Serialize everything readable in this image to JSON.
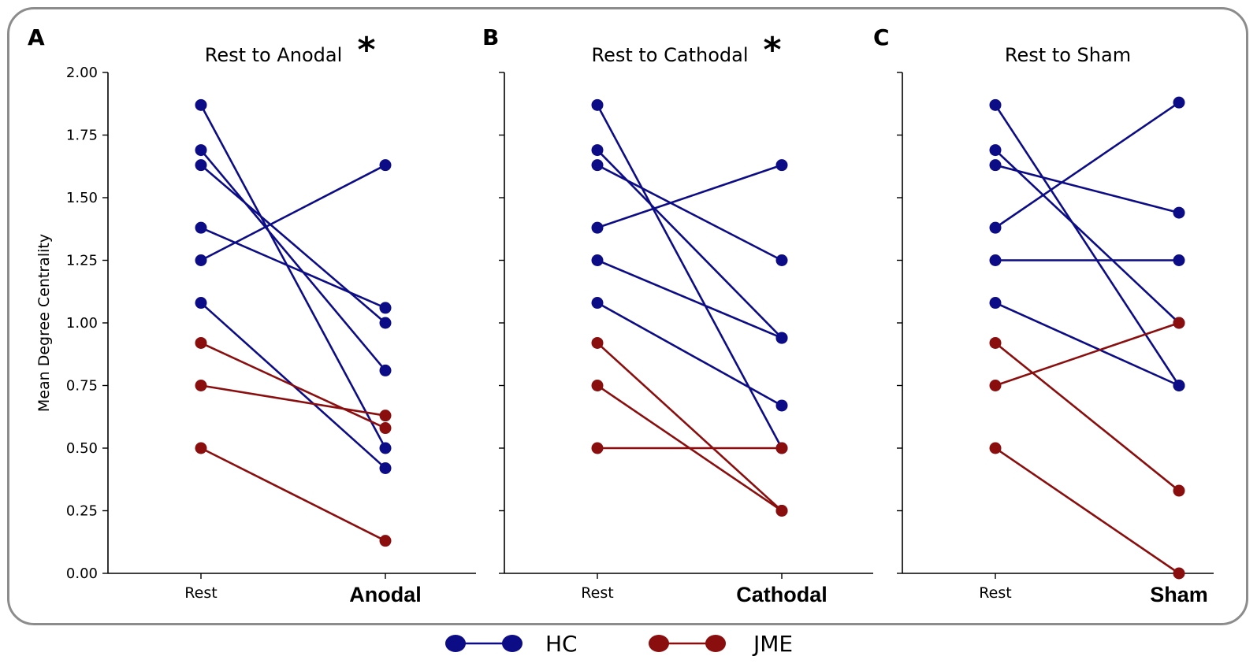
{
  "colors": {
    "hc": "#0c0c86",
    "jme": "#8b0e0e",
    "accent": "#e8222a",
    "frame": "#8c8c8c"
  },
  "legend": [
    {
      "label": "HC",
      "key": "hc"
    },
    {
      "label": "JME",
      "key": "jme"
    }
  ],
  "chart_data": [
    {
      "type": "line",
      "panel_label": "A",
      "title": "Rest to Anodal",
      "significance": "*",
      "ylabel": "Mean Degree Centrality",
      "ylim": [
        0,
        2
      ],
      "yticks": [
        "0.00",
        "0.25",
        "0.50",
        "0.75",
        "1.00",
        "1.25",
        "1.50",
        "1.75",
        "2.00"
      ],
      "categories": [
        "Rest",
        "Anodal"
      ],
      "series": [
        {
          "group": "HC",
          "values": [
            1.87,
            0.5
          ]
        },
        {
          "group": "HC",
          "values": [
            1.69,
            0.81
          ]
        },
        {
          "group": "HC",
          "values": [
            1.63,
            1.0
          ]
        },
        {
          "group": "HC",
          "values": [
            1.38,
            1.06
          ]
        },
        {
          "group": "HC",
          "values": [
            1.25,
            1.63
          ]
        },
        {
          "group": "HC",
          "values": [
            1.08,
            0.42
          ]
        },
        {
          "group": "JME",
          "values": [
            0.92,
            0.58
          ]
        },
        {
          "group": "JME",
          "values": [
            0.75,
            0.63
          ]
        },
        {
          "group": "JME",
          "values": [
            0.5,
            0.13
          ]
        }
      ]
    },
    {
      "type": "line",
      "panel_label": "B",
      "title": "Rest to Cathodal",
      "significance": "*",
      "ylabel": "",
      "ylim": [
        0,
        2
      ],
      "yticks": [],
      "categories": [
        "Rest",
        "Cathodal"
      ],
      "series": [
        {
          "group": "HC",
          "values": [
            1.87,
            0.5
          ]
        },
        {
          "group": "HC",
          "values": [
            1.69,
            0.94
          ]
        },
        {
          "group": "HC",
          "values": [
            1.63,
            1.25
          ]
        },
        {
          "group": "HC",
          "values": [
            1.38,
            1.63
          ]
        },
        {
          "group": "HC",
          "values": [
            1.25,
            0.94
          ]
        },
        {
          "group": "HC",
          "values": [
            1.08,
            0.67
          ]
        },
        {
          "group": "JME",
          "values": [
            0.92,
            0.25
          ]
        },
        {
          "group": "JME",
          "values": [
            0.75,
            0.25
          ]
        },
        {
          "group": "JME",
          "values": [
            0.5,
            0.5
          ]
        }
      ]
    },
    {
      "type": "line",
      "panel_label": "C",
      "title": "Rest to Sham",
      "significance": "",
      "ylabel": "",
      "ylim": [
        0,
        2
      ],
      "yticks": [],
      "categories": [
        "Rest",
        "Sham"
      ],
      "series": [
        {
          "group": "HC",
          "values": [
            1.87,
            0.75
          ]
        },
        {
          "group": "HC",
          "values": [
            1.69,
            1.0
          ]
        },
        {
          "group": "HC",
          "values": [
            1.63,
            1.44
          ]
        },
        {
          "group": "HC",
          "values": [
            1.38,
            1.88
          ]
        },
        {
          "group": "HC",
          "values": [
            1.25,
            1.25
          ]
        },
        {
          "group": "HC",
          "values": [
            1.08,
            0.75
          ]
        },
        {
          "group": "JME",
          "values": [
            0.92,
            0.33
          ]
        },
        {
          "group": "JME",
          "values": [
            0.75,
            1.0
          ]
        },
        {
          "group": "JME",
          "values": [
            0.5,
            0.0
          ]
        }
      ]
    }
  ]
}
